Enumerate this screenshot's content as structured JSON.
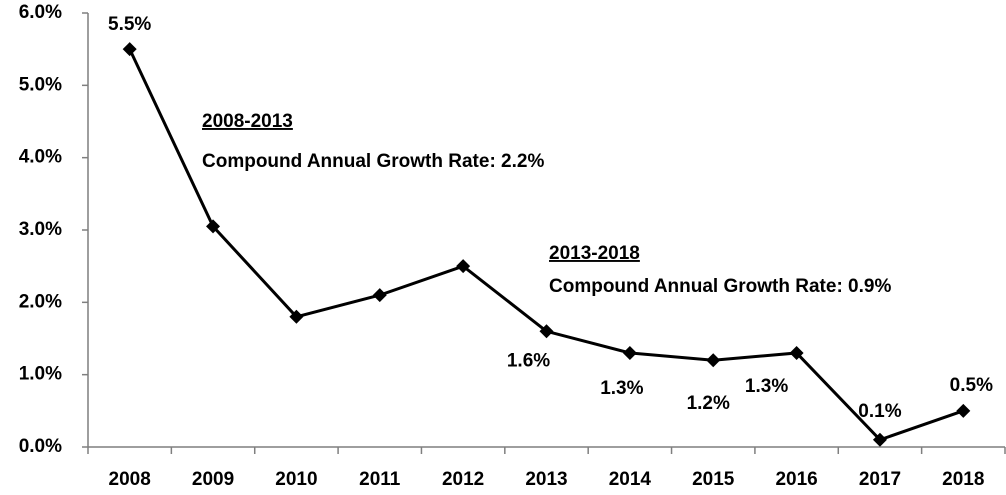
{
  "chart_data": {
    "type": "line",
    "categories": [
      "2008",
      "2009",
      "2010",
      "2011",
      "2012",
      "2013",
      "2014",
      "2015",
      "2016",
      "2017",
      "2018"
    ],
    "values": [
      5.5,
      3.05,
      1.8,
      2.1,
      2.5,
      1.6,
      1.3,
      1.2,
      1.3,
      0.1,
      0.5
    ],
    "value_labels": [
      "5.5%",
      null,
      null,
      null,
      null,
      "1.6%",
      "1.3%",
      "1.2%",
      "1.3%",
      "0.1%",
      "0.5%"
    ],
    "color": "#000000",
    "ylim": [
      0,
      6
    ],
    "yticks": [
      {
        "value": 0,
        "label": "0.0%"
      },
      {
        "value": 1,
        "label": "1.0%"
      },
      {
        "value": 2,
        "label": "2.0%"
      },
      {
        "value": 3,
        "label": "3.0%"
      },
      {
        "value": 4,
        "label": "4.0%"
      },
      {
        "value": 5,
        "label": "5.0%"
      },
      {
        "value": 6,
        "label": "6.0%"
      }
    ],
    "grid": false,
    "annotations": [
      {
        "title": "2008-2013",
        "text": "Compound Annual Growth Rate: 2.2%"
      },
      {
        "title": "2013-2018",
        "text": "Compound Annual Growth Rate: 0.9%"
      }
    ]
  }
}
